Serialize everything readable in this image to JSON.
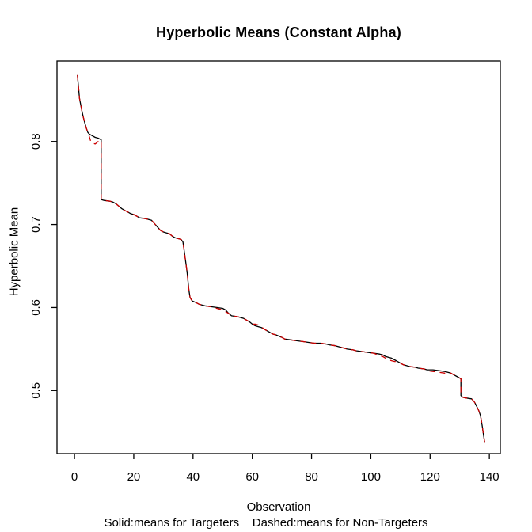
{
  "chart_data": {
    "type": "line",
    "title": "Hyperbolic Means (Constant Alpha)",
    "xlabel": "Observation",
    "ylabel": "Hyperbolic Mean",
    "note": "Solid:means for Targeters    Dashed:means for Non-Targeters",
    "xlim": [
      -5.9,
      143.7
    ],
    "ylim": [
      0.424,
      0.897
    ],
    "xticks": [
      "0",
      "20",
      "40",
      "60",
      "80",
      "100",
      "120",
      "140"
    ],
    "yticks": [
      "0.5",
      "0.6",
      "0.7",
      "0.8"
    ],
    "grid": false,
    "frame_color": "#000000",
    "series": [
      {
        "name": "means for Targeters",
        "style": "solid",
        "color": "#000000",
        "points": [
          [
            1,
            0.88
          ],
          [
            1.7,
            0.852
          ],
          [
            2,
            0.846
          ],
          [
            2.5,
            0.837
          ],
          [
            3,
            0.829
          ],
          [
            3.5,
            0.822
          ],
          [
            4,
            0.816
          ],
          [
            4.5,
            0.811
          ],
          [
            5,
            0.809
          ],
          [
            6,
            0.807
          ],
          [
            7,
            0.805
          ],
          [
            8,
            0.804
          ],
          [
            9,
            0.802
          ],
          [
            9,
            0.73
          ],
          [
            10,
            0.729
          ],
          [
            12,
            0.728
          ],
          [
            13,
            0.727
          ],
          [
            14,
            0.725
          ],
          [
            15,
            0.722
          ],
          [
            16,
            0.719
          ],
          [
            17,
            0.717
          ],
          [
            18,
            0.715
          ],
          [
            19,
            0.713
          ],
          [
            20,
            0.712
          ],
          [
            21,
            0.71
          ],
          [
            22,
            0.708
          ],
          [
            24,
            0.707
          ],
          [
            25,
            0.706
          ],
          [
            26,
            0.705
          ],
          [
            27,
            0.701
          ],
          [
            28,
            0.697
          ],
          [
            29,
            0.693
          ],
          [
            30,
            0.691
          ],
          [
            31,
            0.69
          ],
          [
            32,
            0.689
          ],
          [
            33,
            0.686
          ],
          [
            34,
            0.684
          ],
          [
            35,
            0.683
          ],
          [
            36,
            0.682
          ],
          [
            36.6,
            0.679
          ],
          [
            37.2,
            0.664
          ],
          [
            38,
            0.643
          ],
          [
            38.6,
            0.621
          ],
          [
            39,
            0.612
          ],
          [
            39.7,
            0.608
          ],
          [
            41,
            0.606
          ],
          [
            42,
            0.604
          ],
          [
            43,
            0.603
          ],
          [
            44,
            0.602
          ],
          [
            46,
            0.601
          ],
          [
            48,
            0.6
          ],
          [
            50,
            0.599
          ],
          [
            51,
            0.597
          ],
          [
            52,
            0.593
          ],
          [
            53,
            0.59
          ],
          [
            55,
            0.589
          ],
          [
            56,
            0.588
          ],
          [
            57,
            0.587
          ],
          [
            58,
            0.585
          ],
          [
            59,
            0.583
          ],
          [
            60,
            0.58
          ],
          [
            61,
            0.578
          ],
          [
            62,
            0.577
          ],
          [
            63,
            0.576
          ],
          [
            64,
            0.574
          ],
          [
            65,
            0.572
          ],
          [
            66,
            0.57
          ],
          [
            67,
            0.568
          ],
          [
            68,
            0.567
          ],
          [
            70,
            0.564
          ],
          [
            71,
            0.562
          ],
          [
            73,
            0.561
          ],
          [
            75,
            0.56
          ],
          [
            77,
            0.559
          ],
          [
            79,
            0.558
          ],
          [
            81,
            0.557
          ],
          [
            83,
            0.557
          ],
          [
            85,
            0.556
          ],
          [
            86,
            0.555
          ],
          [
            88,
            0.554
          ],
          [
            89,
            0.553
          ],
          [
            91,
            0.551
          ],
          [
            92,
            0.55
          ],
          [
            94,
            0.549
          ],
          [
            95,
            0.548
          ],
          [
            97,
            0.547
          ],
          [
            99,
            0.546
          ],
          [
            101,
            0.545
          ],
          [
            103,
            0.544
          ],
          [
            104,
            0.543
          ],
          [
            105,
            0.541
          ],
          [
            106,
            0.54
          ],
          [
            107,
            0.539
          ],
          [
            108,
            0.537
          ],
          [
            109,
            0.535
          ],
          [
            110,
            0.533
          ],
          [
            111,
            0.531
          ],
          [
            112,
            0.53
          ],
          [
            113,
            0.529
          ],
          [
            115,
            0.528
          ],
          [
            116,
            0.527
          ],
          [
            118,
            0.526
          ],
          [
            119,
            0.525
          ],
          [
            121,
            0.525
          ],
          [
            123,
            0.524
          ],
          [
            125,
            0.523
          ],
          [
            126,
            0.522
          ],
          [
            127,
            0.521
          ],
          [
            128,
            0.519
          ],
          [
            129,
            0.517
          ],
          [
            130,
            0.515
          ],
          [
            130.4,
            0.514
          ],
          [
            130.4,
            0.494
          ],
          [
            131,
            0.492
          ],
          [
            132,
            0.491
          ],
          [
            134,
            0.49
          ],
          [
            135,
            0.486
          ],
          [
            135.7,
            0.481
          ],
          [
            136.4,
            0.476
          ],
          [
            137,
            0.47
          ],
          [
            137.4,
            0.462
          ],
          [
            137.7,
            0.455
          ],
          [
            138,
            0.447
          ],
          [
            138.4,
            0.438
          ]
        ]
      },
      {
        "name": "means for Non-Targeters",
        "style": "dashed",
        "color": "#cc0000",
        "points": [
          [
            1,
            0.88
          ],
          [
            1.7,
            0.852
          ],
          [
            2,
            0.846
          ],
          [
            2.5,
            0.837
          ],
          [
            3,
            0.829
          ],
          [
            3.5,
            0.822
          ],
          [
            4,
            0.816
          ],
          [
            4.5,
            0.811
          ],
          [
            5,
            0.806
          ],
          [
            5.5,
            0.8
          ],
          [
            6,
            0.798
          ],
          [
            7,
            0.797
          ],
          [
            8,
            0.8
          ],
          [
            9,
            0.801
          ],
          [
            9,
            0.73
          ],
          [
            10,
            0.729
          ],
          [
            12,
            0.728
          ],
          [
            13,
            0.727
          ],
          [
            14,
            0.725
          ],
          [
            15,
            0.722
          ],
          [
            16,
            0.719
          ],
          [
            17,
            0.717
          ],
          [
            18,
            0.715
          ],
          [
            19,
            0.713
          ],
          [
            20,
            0.712
          ],
          [
            21,
            0.71
          ],
          [
            22,
            0.708
          ],
          [
            24,
            0.707
          ],
          [
            25,
            0.706
          ],
          [
            26,
            0.705
          ],
          [
            27,
            0.701
          ],
          [
            28,
            0.697
          ],
          [
            29,
            0.693
          ],
          [
            30,
            0.691
          ],
          [
            31,
            0.69
          ],
          [
            32,
            0.689
          ],
          [
            33,
            0.686
          ],
          [
            34,
            0.684
          ],
          [
            35,
            0.683
          ],
          [
            36,
            0.682
          ],
          [
            36.6,
            0.679
          ],
          [
            37.2,
            0.664
          ],
          [
            38,
            0.643
          ],
          [
            38.6,
            0.621
          ],
          [
            39,
            0.612
          ],
          [
            39.7,
            0.608
          ],
          [
            41,
            0.606
          ],
          [
            42,
            0.604
          ],
          [
            43,
            0.603
          ],
          [
            44,
            0.602
          ],
          [
            46,
            0.601
          ],
          [
            48,
            0.599
          ],
          [
            50,
            0.597
          ],
          [
            51,
            0.595
          ],
          [
            52,
            0.593
          ],
          [
            53,
            0.59
          ],
          [
            55,
            0.589
          ],
          [
            56,
            0.588
          ],
          [
            57,
            0.587
          ],
          [
            58,
            0.585
          ],
          [
            59,
            0.583
          ],
          [
            60,
            0.58
          ],
          [
            61,
            0.58
          ],
          [
            62,
            0.579
          ],
          [
            63,
            0.577
          ],
          [
            64,
            0.574
          ],
          [
            65,
            0.572
          ],
          [
            66,
            0.57
          ],
          [
            67,
            0.568
          ],
          [
            68,
            0.567
          ],
          [
            70,
            0.564
          ],
          [
            71,
            0.562
          ],
          [
            73,
            0.561
          ],
          [
            75,
            0.56
          ],
          [
            77,
            0.559
          ],
          [
            79,
            0.558
          ],
          [
            81,
            0.557
          ],
          [
            83,
            0.557
          ],
          [
            85,
            0.556
          ],
          [
            86,
            0.555
          ],
          [
            88,
            0.554
          ],
          [
            89,
            0.553
          ],
          [
            91,
            0.551
          ],
          [
            92,
            0.55
          ],
          [
            94,
            0.549
          ],
          [
            95,
            0.548
          ],
          [
            97,
            0.547
          ],
          [
            99,
            0.546
          ],
          [
            101,
            0.545
          ],
          [
            103,
            0.542
          ],
          [
            104,
            0.541
          ],
          [
            105,
            0.539
          ],
          [
            106,
            0.537
          ],
          [
            107,
            0.536
          ],
          [
            108,
            0.535
          ],
          [
            109,
            0.535
          ],
          [
            110,
            0.533
          ],
          [
            111,
            0.531
          ],
          [
            112,
            0.53
          ],
          [
            113,
            0.529
          ],
          [
            115,
            0.528
          ],
          [
            116,
            0.527
          ],
          [
            118,
            0.526
          ],
          [
            119,
            0.524
          ],
          [
            121,
            0.523
          ],
          [
            123,
            0.522
          ],
          [
            125,
            0.521
          ],
          [
            126,
            0.52
          ],
          [
            127,
            0.521
          ],
          [
            128,
            0.519
          ],
          [
            129,
            0.517
          ],
          [
            130,
            0.515
          ],
          [
            130.4,
            0.514
          ],
          [
            130.4,
            0.494
          ],
          [
            131,
            0.492
          ],
          [
            132,
            0.491
          ],
          [
            134,
            0.49
          ],
          [
            135,
            0.486
          ],
          [
            135.7,
            0.481
          ],
          [
            136.4,
            0.476
          ],
          [
            137,
            0.47
          ],
          [
            137.4,
            0.462
          ],
          [
            137.7,
            0.455
          ],
          [
            138,
            0.447
          ],
          [
            138.4,
            0.438
          ]
        ]
      }
    ]
  }
}
